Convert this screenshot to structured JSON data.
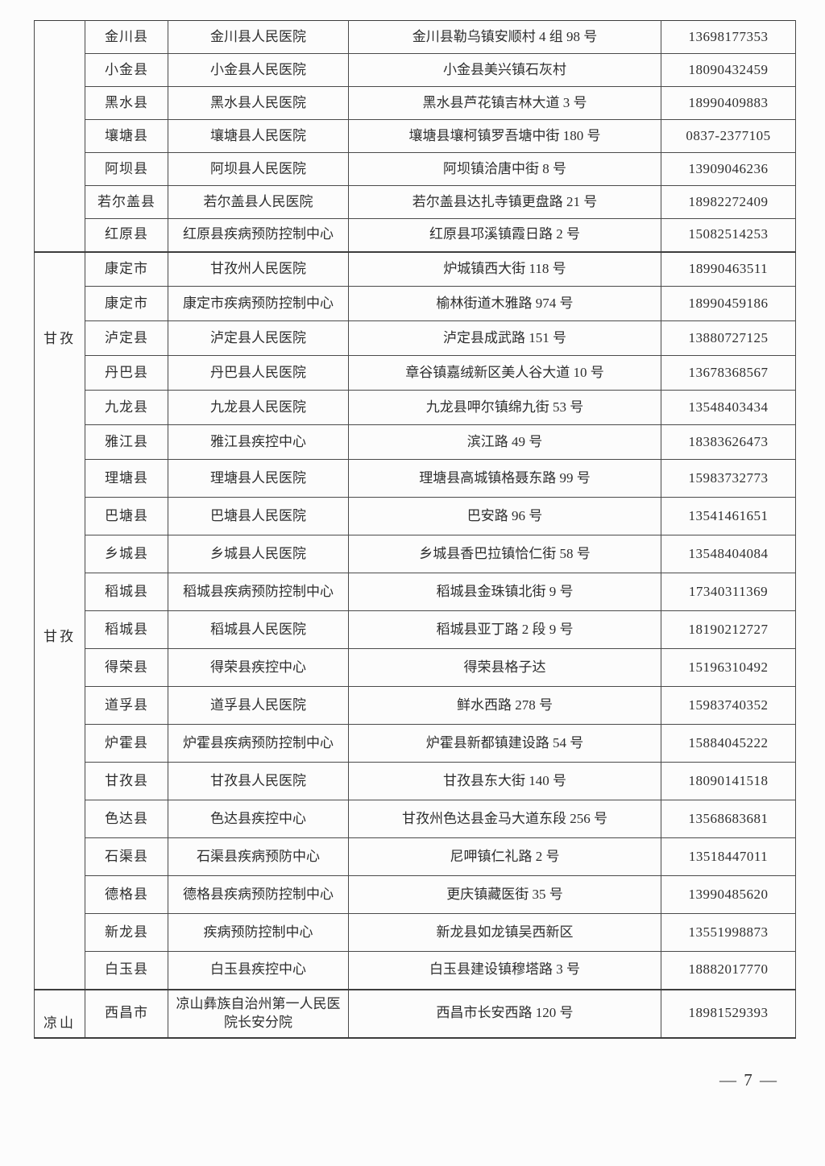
{
  "page": {
    "footer_page_number": "— 7 —"
  },
  "table": {
    "sections": [
      {
        "prefecture_labels": [],
        "rows": [
          {
            "county": "金川县",
            "institution": "金川县人民医院",
            "address": "金川县勒乌镇安顺村 4 组 98 号",
            "phone": "13698177353"
          },
          {
            "county": "小金县",
            "institution": "小金县人民医院",
            "address": "小金县美兴镇石灰村",
            "phone": "18090432459"
          },
          {
            "county": "黑水县",
            "institution": "黑水县人民医院",
            "address": "黑水县芦花镇吉林大道 3 号",
            "phone": "18990409883"
          },
          {
            "county": "壤塘县",
            "institution": "壤塘县人民医院",
            "address": "壤塘县壤柯镇罗吾塘中街 180 号",
            "phone": "0837-2377105"
          },
          {
            "county": "阿坝县",
            "institution": "阿坝县人民医院",
            "address": "阿坝镇洽唐中街 8 号",
            "phone": "13909046236"
          },
          {
            "county": "若尔盖县",
            "institution": "若尔盖县人民医院",
            "address": "若尔盖县达扎寺镇更盘路 21 号",
            "phone": "18982272409"
          },
          {
            "county": "红原县",
            "institution": "红原县疾病预防控制中心",
            "address": "红原县邛溪镇霞日路 2 号",
            "phone": "15082514253"
          }
        ]
      },
      {
        "prefecture_labels": [
          "甘孜",
          "甘孜"
        ],
        "rows": [
          {
            "county": "康定市",
            "institution": "甘孜州人民医院",
            "address": "炉城镇西大街 118 号",
            "phone": "18990463511"
          },
          {
            "county": "康定市",
            "institution": "康定市疾病预防控制中心",
            "address": "榆林街道木雅路 974 号",
            "phone": "18990459186"
          },
          {
            "county": "泸定县",
            "institution": "泸定县人民医院",
            "address": "泸定县成武路 151 号",
            "phone": "13880727125"
          },
          {
            "county": "丹巴县",
            "institution": "丹巴县人民医院",
            "address": "章谷镇嘉绒新区美人谷大道 10 号",
            "phone": "13678368567"
          },
          {
            "county": "九龙县",
            "institution": "九龙县人民医院",
            "address": "九龙县呷尔镇绵九街 53 号",
            "phone": "13548403434"
          },
          {
            "county": "雅江县",
            "institution": "雅江县疾控中心",
            "address": "滨江路 49 号",
            "phone": "18383626473"
          },
          {
            "county": "理塘县",
            "institution": "理塘县人民医院",
            "address": "理塘县高城镇格聂东路 99 号",
            "phone": "15983732773"
          },
          {
            "county": "巴塘县",
            "institution": "巴塘县人民医院",
            "address": "巴安路 96 号",
            "phone": "13541461651"
          },
          {
            "county": "乡城县",
            "institution": "乡城县人民医院",
            "address": "乡城县香巴拉镇恰仁街 58 号",
            "phone": "13548404084"
          },
          {
            "county": "稻城县",
            "institution": "稻城县疾病预防控制中心",
            "address": "稻城县金珠镇北街 9 号",
            "phone": "17340311369"
          },
          {
            "county": "稻城县",
            "institution": "稻城县人民医院",
            "address": "稻城县亚丁路 2 段 9 号",
            "phone": "18190212727"
          },
          {
            "county": "得荣县",
            "institution": "得荣县疾控中心",
            "address": "得荣县格子达",
            "phone": "15196310492"
          },
          {
            "county": "道孚县",
            "institution": "道孚县人民医院",
            "address": "鲜水西路 278 号",
            "phone": "15983740352"
          },
          {
            "county": "炉霍县",
            "institution": "炉霍县疾病预防控制中心",
            "address": "炉霍县新都镇建设路 54 号",
            "phone": "15884045222"
          },
          {
            "county": "甘孜县",
            "institution": "甘孜县人民医院",
            "address": "甘孜县东大街 140 号",
            "phone": "18090141518"
          },
          {
            "county": "色达县",
            "institution": "色达县疾控中心",
            "address": "甘孜州色达县金马大道东段 256 号",
            "phone": "13568683681"
          },
          {
            "county": "石渠县",
            "institution": "石渠县疾病预防中心",
            "address": "尼呷镇仁礼路 2 号",
            "phone": "13518447011"
          },
          {
            "county": "德格县",
            "institution": "德格县疾病预防控制中心",
            "address": "更庆镇藏医街 35 号",
            "phone": "13990485620"
          },
          {
            "county": "新龙县",
            "institution": "疾病预防控制中心",
            "address": "新龙县如龙镇吴西新区",
            "phone": "13551998873"
          },
          {
            "county": "白玉县",
            "institution": "白玉县疾控中心",
            "address": "白玉县建设镇穆塔路 3 号",
            "phone": "18882017770"
          }
        ]
      },
      {
        "prefecture_labels": [
          "凉山"
        ],
        "rows": [
          {
            "county": "西昌市",
            "institution": "凉山彝族自治州第一人民医院长安分院",
            "address": "西昌市长安西路 120 号",
            "phone": "18981529393"
          }
        ]
      }
    ]
  }
}
